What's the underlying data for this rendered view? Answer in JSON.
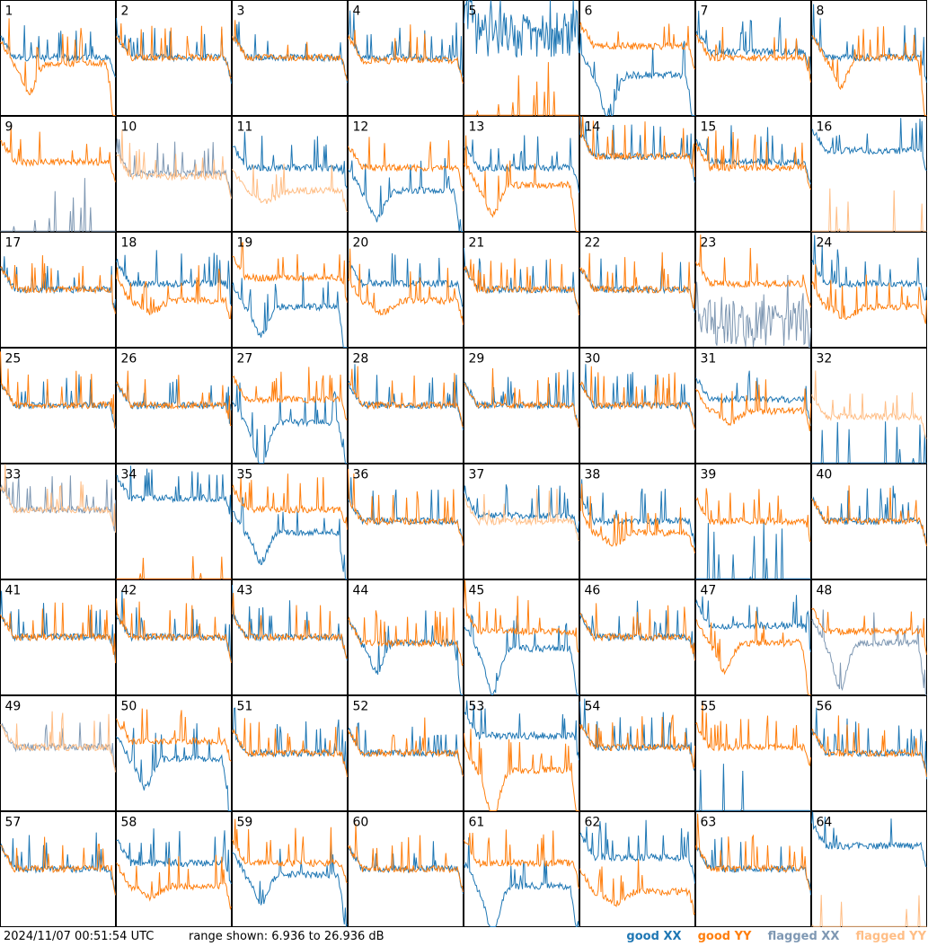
{
  "footer": {
    "timestamp": "2024/11/07 00:51:54 UTC",
    "range_text": "range shown: 6.936 to 26.936 dB",
    "legend": {
      "good_prefix": "good",
      "xx": "XX",
      "yy": "YY",
      "flagged_prefix": "flagged"
    }
  },
  "colors": {
    "good_xx": "#1f77b4",
    "good_yy": "#ff7f0e",
    "flagged_xx": "#7f98b3",
    "flagged_yy": "#ffbe86"
  },
  "chart_data": {
    "type": "line",
    "layout": "8x8 small multiples of antenna spectra",
    "y_range_db": [
      6.936,
      26.936
    ],
    "panels": [
      {
        "label": "1",
        "xx": {
          "flag": false,
          "shape": "norm",
          "level": 17
        },
        "yy": {
          "flag": false,
          "shape": "dipdrop",
          "level": 16
        }
      },
      {
        "label": "2",
        "xx": {
          "flag": false,
          "shape": "norm",
          "level": 17
        },
        "yy": {
          "flag": false,
          "shape": "norm",
          "level": 17
        }
      },
      {
        "label": "3",
        "xx": {
          "flag": false,
          "shape": "norm",
          "level": 17
        },
        "yy": {
          "flag": false,
          "shape": "norm",
          "level": 17
        }
      },
      {
        "label": "4",
        "xx": {
          "flag": false,
          "shape": "norm",
          "level": 17
        },
        "yy": {
          "flag": false,
          "shape": "norm",
          "level": 16.5
        }
      },
      {
        "label": "5",
        "xx": {
          "flag": false,
          "shape": "noisy",
          "level": 21
        },
        "yy": {
          "flag": false,
          "shape": "flatspikes",
          "level": 7
        }
      },
      {
        "label": "6",
        "xx": {
          "flag": false,
          "shape": "bigdip",
          "level": 14
        },
        "yy": {
          "flag": false,
          "shape": "norm",
          "level": 19
        }
      },
      {
        "label": "7",
        "xx": {
          "flag": false,
          "shape": "norm",
          "level": 18
        },
        "yy": {
          "flag": false,
          "shape": "norm",
          "level": 17
        }
      },
      {
        "label": "8",
        "xx": {
          "flag": false,
          "shape": "norm",
          "level": 17
        },
        "yy": {
          "flag": false,
          "shape": "dipdrop",
          "level": 17
        }
      },
      {
        "label": "9",
        "xx": {
          "flag": true,
          "shape": "flatspikes",
          "level": 7
        },
        "yy": {
          "flag": false,
          "shape": "norm",
          "level": 19
        }
      },
      {
        "label": "10",
        "xx": {
          "flag": true,
          "shape": "norm",
          "level": 17
        },
        "yy": {
          "flag": true,
          "shape": "norm",
          "level": 16.5
        }
      },
      {
        "label": "11",
        "xx": {
          "flag": false,
          "shape": "norm",
          "level": 18
        },
        "yy": {
          "flag": true,
          "shape": "low",
          "level": 14
        }
      },
      {
        "label": "12",
        "xx": {
          "flag": false,
          "shape": "dipdrop",
          "level": 14
        },
        "yy": {
          "flag": false,
          "shape": "norm",
          "level": 18
        }
      },
      {
        "label": "13",
        "xx": {
          "flag": false,
          "shape": "norm",
          "level": 18
        },
        "yy": {
          "flag": false,
          "shape": "dipdrop",
          "level": 15
        }
      },
      {
        "label": "14",
        "xx": {
          "flag": false,
          "shape": "norm",
          "level": 20
        },
        "yy": {
          "flag": false,
          "shape": "norm",
          "level": 20
        }
      },
      {
        "label": "15",
        "xx": {
          "flag": false,
          "shape": "norm",
          "level": 19
        },
        "yy": {
          "flag": false,
          "shape": "norm",
          "level": 18
        }
      },
      {
        "label": "16",
        "xx": {
          "flag": false,
          "shape": "norm",
          "level": 21
        },
        "yy": {
          "flag": true,
          "shape": "flatspikes",
          "level": 7
        }
      },
      {
        "label": "17",
        "xx": {
          "flag": false,
          "shape": "norm",
          "level": 17
        },
        "yy": {
          "flag": false,
          "shape": "norm",
          "level": 17
        }
      },
      {
        "label": "18",
        "xx": {
          "flag": false,
          "shape": "norm",
          "level": 18
        },
        "yy": {
          "flag": false,
          "shape": "low",
          "level": 15
        }
      },
      {
        "label": "19",
        "xx": {
          "flag": false,
          "shape": "dipdrop",
          "level": 14
        },
        "yy": {
          "flag": false,
          "shape": "norm",
          "level": 19
        }
      },
      {
        "label": "20",
        "xx": {
          "flag": false,
          "shape": "norm",
          "level": 18
        },
        "yy": {
          "flag": false,
          "shape": "low",
          "level": 15
        }
      },
      {
        "label": "21",
        "xx": {
          "flag": false,
          "shape": "norm",
          "level": 17
        },
        "yy": {
          "flag": false,
          "shape": "norm",
          "level": 17
        }
      },
      {
        "label": "22",
        "xx": {
          "flag": false,
          "shape": "norm",
          "level": 17
        },
        "yy": {
          "flag": false,
          "shape": "norm",
          "level": 17
        }
      },
      {
        "label": "23",
        "xx": {
          "flag": true,
          "shape": "noisy",
          "level": 11
        },
        "yy": {
          "flag": false,
          "shape": "norm",
          "level": 18
        }
      },
      {
        "label": "24",
        "xx": {
          "flag": false,
          "shape": "norm",
          "level": 18
        },
        "yy": {
          "flag": false,
          "shape": "low",
          "level": 14
        }
      },
      {
        "label": "25",
        "xx": {
          "flag": false,
          "shape": "norm",
          "level": 17
        },
        "yy": {
          "flag": false,
          "shape": "norm",
          "level": 17
        }
      },
      {
        "label": "26",
        "xx": {
          "flag": false,
          "shape": "norm",
          "level": 17
        },
        "yy": {
          "flag": false,
          "shape": "norm",
          "level": 17
        }
      },
      {
        "label": "27",
        "xx": {
          "flag": false,
          "shape": "bigdip",
          "level": 14
        },
        "yy": {
          "flag": false,
          "shape": "norm",
          "level": 18
        }
      },
      {
        "label": "28",
        "xx": {
          "flag": false,
          "shape": "norm",
          "level": 17
        },
        "yy": {
          "flag": false,
          "shape": "norm",
          "level": 17
        }
      },
      {
        "label": "29",
        "xx": {
          "flag": false,
          "shape": "norm",
          "level": 17
        },
        "yy": {
          "flag": false,
          "shape": "norm",
          "level": 17
        }
      },
      {
        "label": "30",
        "xx": {
          "flag": false,
          "shape": "norm",
          "level": 17
        },
        "yy": {
          "flag": false,
          "shape": "norm",
          "level": 17
        }
      },
      {
        "label": "31",
        "xx": {
          "flag": false,
          "shape": "norm",
          "level": 18
        },
        "yy": {
          "flag": false,
          "shape": "low",
          "level": 16
        }
      },
      {
        "label": "32",
        "xx": {
          "flag": false,
          "shape": "flatspikes",
          "level": 7
        },
        "yy": {
          "flag": true,
          "shape": "norm",
          "level": 15
        }
      },
      {
        "label": "33",
        "xx": {
          "flag": true,
          "shape": "norm",
          "level": 19
        },
        "yy": {
          "flag": true,
          "shape": "norm",
          "level": 19
        }
      },
      {
        "label": "34",
        "xx": {
          "flag": false,
          "shape": "norm",
          "level": 21
        },
        "yy": {
          "flag": false,
          "shape": "flatspikes",
          "level": 7
        }
      },
      {
        "label": "35",
        "xx": {
          "flag": false,
          "shape": "dipdrop",
          "level": 15
        },
        "yy": {
          "flag": false,
          "shape": "norm",
          "level": 19
        }
      },
      {
        "label": "36",
        "xx": {
          "flag": false,
          "shape": "norm",
          "level": 17
        },
        "yy": {
          "flag": false,
          "shape": "norm",
          "level": 17
        }
      },
      {
        "label": "37",
        "xx": {
          "flag": false,
          "shape": "norm",
          "level": 18
        },
        "yy": {
          "flag": true,
          "shape": "norm",
          "level": 17
        }
      },
      {
        "label": "38",
        "xx": {
          "flag": false,
          "shape": "norm",
          "level": 17
        },
        "yy": {
          "flag": false,
          "shape": "low",
          "level": 15
        }
      },
      {
        "label": "39",
        "xx": {
          "flag": false,
          "shape": "flatspikes",
          "level": 7
        },
        "yy": {
          "flag": false,
          "shape": "norm",
          "level": 17
        }
      },
      {
        "label": "40",
        "xx": {
          "flag": false,
          "shape": "norm",
          "level": 17
        },
        "yy": {
          "flag": false,
          "shape": "norm",
          "level": 17
        }
      },
      {
        "label": "41",
        "xx": {
          "flag": false,
          "shape": "norm",
          "level": 17
        },
        "yy": {
          "flag": false,
          "shape": "norm",
          "level": 17
        }
      },
      {
        "label": "42",
        "xx": {
          "flag": false,
          "shape": "norm",
          "level": 17
        },
        "yy": {
          "flag": false,
          "shape": "norm",
          "level": 17
        }
      },
      {
        "label": "43",
        "xx": {
          "flag": false,
          "shape": "norm",
          "level": 17
        },
        "yy": {
          "flag": false,
          "shape": "norm",
          "level": 17
        }
      },
      {
        "label": "44",
        "xx": {
          "flag": false,
          "shape": "dipdrop",
          "level": 16
        },
        "yy": {
          "flag": false,
          "shape": "norm",
          "level": 16
        }
      },
      {
        "label": "45",
        "xx": {
          "flag": false,
          "shape": "bigdip",
          "level": 15
        },
        "yy": {
          "flag": false,
          "shape": "norm",
          "level": 18
        }
      },
      {
        "label": "46",
        "xx": {
          "flag": false,
          "shape": "norm",
          "level": 17
        },
        "yy": {
          "flag": false,
          "shape": "norm",
          "level": 17
        }
      },
      {
        "label": "47",
        "xx": {
          "flag": false,
          "shape": "norm",
          "level": 19
        },
        "yy": {
          "flag": false,
          "shape": "dipdrop",
          "level": 16
        }
      },
      {
        "label": "48",
        "xx": {
          "flag": true,
          "shape": "bigdip",
          "level": 16
        },
        "yy": {
          "flag": false,
          "shape": "norm",
          "level": 18
        }
      },
      {
        "label": "49",
        "xx": {
          "flag": true,
          "shape": "norm",
          "level": 18
        },
        "yy": {
          "flag": true,
          "shape": "norm",
          "level": 18
        }
      },
      {
        "label": "50",
        "xx": {
          "flag": false,
          "shape": "dipdrop",
          "level": 16
        },
        "yy": {
          "flag": false,
          "shape": "norm",
          "level": 19
        }
      },
      {
        "label": "51",
        "xx": {
          "flag": false,
          "shape": "norm",
          "level": 17
        },
        "yy": {
          "flag": false,
          "shape": "norm",
          "level": 17
        }
      },
      {
        "label": "52",
        "xx": {
          "flag": false,
          "shape": "norm",
          "level": 17
        },
        "yy": {
          "flag": false,
          "shape": "norm",
          "level": 17
        }
      },
      {
        "label": "53",
        "xx": {
          "flag": false,
          "shape": "norm",
          "level": 20
        },
        "yy": {
          "flag": false,
          "shape": "bigdip",
          "level": 14
        }
      },
      {
        "label": "54",
        "xx": {
          "flag": false,
          "shape": "norm",
          "level": 18
        },
        "yy": {
          "flag": false,
          "shape": "norm",
          "level": 18
        }
      },
      {
        "label": "55",
        "xx": {
          "flag": false,
          "shape": "flatspikes",
          "level": 8
        },
        "yy": {
          "flag": false,
          "shape": "norm",
          "level": 18
        }
      },
      {
        "label": "56",
        "xx": {
          "flag": false,
          "shape": "norm",
          "level": 17
        },
        "yy": {
          "flag": false,
          "shape": "norm",
          "level": 17
        }
      },
      {
        "label": "57",
        "xx": {
          "flag": false,
          "shape": "norm",
          "level": 17
        },
        "yy": {
          "flag": false,
          "shape": "norm",
          "level": 17
        }
      },
      {
        "label": "58",
        "xx": {
          "flag": false,
          "shape": "norm",
          "level": 18
        },
        "yy": {
          "flag": false,
          "shape": "low",
          "level": 14
        }
      },
      {
        "label": "59",
        "xx": {
          "flag": false,
          "shape": "dipdrop",
          "level": 16
        },
        "yy": {
          "flag": false,
          "shape": "norm",
          "level": 18
        }
      },
      {
        "label": "60",
        "xx": {
          "flag": false,
          "shape": "norm",
          "level": 17
        },
        "yy": {
          "flag": false,
          "shape": "norm",
          "level": 17
        }
      },
      {
        "label": "61",
        "xx": {
          "flag": false,
          "shape": "bigdip",
          "level": 14
        },
        "yy": {
          "flag": false,
          "shape": "norm",
          "level": 18
        }
      },
      {
        "label": "62",
        "xx": {
          "flag": false,
          "shape": "norm",
          "level": 19
        },
        "yy": {
          "flag": false,
          "shape": "low",
          "level": 13
        }
      },
      {
        "label": "63",
        "xx": {
          "flag": false,
          "shape": "norm",
          "level": 17
        },
        "yy": {
          "flag": false,
          "shape": "norm",
          "level": 17
        }
      },
      {
        "label": "64",
        "xx": {
          "flag": false,
          "shape": "norm",
          "level": 21
        },
        "yy": {
          "flag": true,
          "shape": "flatspikes",
          "level": 7
        }
      }
    ]
  }
}
